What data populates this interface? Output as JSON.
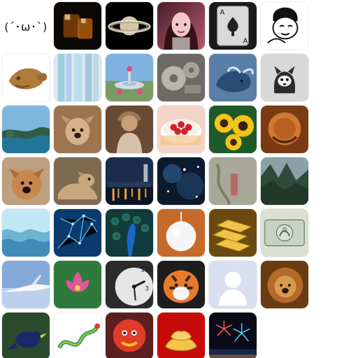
{
  "grid": {
    "rows": 7,
    "cols": 6,
    "items": [
      {
        "icon": "kaomoji-icon",
        "text": "(´･ω･`)",
        "colors": [
          "#ffffff",
          "#ffffff"
        ]
      },
      {
        "icon": "whiskey-glass-icon",
        "colors": [
          "#0c0805",
          "#7a3d0b"
        ]
      },
      {
        "icon": "saturn-icon",
        "colors": [
          "#000000",
          "#d6c6a5"
        ]
      },
      {
        "icon": "woman-portrait-icon",
        "colors": [
          "#4a1d2a",
          "#f1c8c8"
        ]
      },
      {
        "icon": "ace-of-spades-card-icon",
        "colors": [
          "#1b1b1b",
          "#d9d9d9"
        ]
      },
      {
        "icon": "meme-face-icon",
        "colors": [
          "#ffffff",
          "#111111"
        ]
      },
      {
        "icon": "taiyaki-fish-cookie-icon",
        "colors": [
          "#ffffff",
          "#b07a3a"
        ]
      },
      {
        "icon": "watercolor-abstract-icon",
        "colors": [
          "#dfe7f2",
          "#7dc4d6"
        ]
      },
      {
        "icon": "fountain-plaza-icon",
        "colors": [
          "#7fb2e0",
          "#e04b7d"
        ]
      },
      {
        "icon": "machine-gears-icon",
        "colors": [
          "#6e6a64",
          "#b9b5ad"
        ]
      },
      {
        "icon": "blue-bull-statue-icon",
        "colors": [
          "#5a7fa6",
          "#2a4d75"
        ]
      },
      {
        "icon": "cat-icon",
        "colors": [
          "#d8d8d8",
          "#2b2b2b"
        ]
      },
      {
        "icon": "lake-landscape-icon",
        "colors": [
          "#7fb6dd",
          "#2f5c44"
        ]
      },
      {
        "icon": "dog-icon",
        "colors": [
          "#9d7450",
          "#d6b08b"
        ]
      },
      {
        "icon": "costumed-figure-icon",
        "colors": [
          "#6b4a33",
          "#c9a07a"
        ]
      },
      {
        "icon": "strawberry-cake-icon",
        "colors": [
          "#f2d4c8",
          "#d1202b"
        ]
      },
      {
        "icon": "sunflowers-icon",
        "colors": [
          "#1f5a2a",
          "#f2c418"
        ]
      },
      {
        "icon": "carved-sculpture-icon",
        "colors": [
          "#7a3b13",
          "#d07a31"
        ]
      },
      {
        "icon": "dog-icon",
        "colors": [
          "#bca07f",
          "#c8874f"
        ]
      },
      {
        "icon": "dog-lying-icon",
        "colors": [
          "#7d6a4f",
          "#c9a77c"
        ]
      },
      {
        "icon": "night-harbor-icon",
        "colors": [
          "#1a2d4a",
          "#f0a43a"
        ]
      },
      {
        "icon": "galaxy-icon",
        "colors": [
          "#0b1a2c",
          "#3b6ea5"
        ]
      },
      {
        "icon": "cliff-carving-icon",
        "colors": [
          "#7b8a7a",
          "#b5b1a1"
        ]
      },
      {
        "icon": "mountain-peaks-icon",
        "colors": [
          "#8aa1a6",
          "#2f4a3a"
        ]
      },
      {
        "icon": "water-waves-icon",
        "colors": [
          "#bfe7f5",
          "#2c86b8"
        ]
      },
      {
        "icon": "blue-network-icon",
        "colors": [
          "#0b3b6e",
          "#61c6f2"
        ]
      },
      {
        "icon": "peacock-feathers-icon",
        "colors": [
          "#113b3d",
          "#2a7f4a"
        ]
      },
      {
        "icon": "white-fluff-ball-icon",
        "colors": [
          "#c66a2a",
          "#f5f5f5"
        ]
      },
      {
        "icon": "gold-bars-icon",
        "colors": [
          "#6b4a12",
          "#f0c44a"
        ]
      },
      {
        "icon": "dollar-bill-icon",
        "colors": [
          "#d9dfd1",
          "#4d6a52"
        ]
      },
      {
        "icon": "airplane-wing-sky-icon",
        "colors": [
          "#84a9d8",
          "#e7f0ff"
        ]
      },
      {
        "icon": "lotus-flower-icon",
        "colors": [
          "#2f7a3b",
          "#e0569a"
        ]
      },
      {
        "icon": "clock-face-icon",
        "colors": [
          "#2b2b2b",
          "#e6e6e6"
        ]
      },
      {
        "icon": "tiger-icon",
        "colors": [
          "#1d1d1d",
          "#e87a2b"
        ]
      },
      {
        "icon": "default-avatar-icon",
        "colors": [
          "#d8dfef",
          "#ffffff"
        ]
      },
      {
        "icon": "lion-icon",
        "colors": [
          "#6a3c12",
          "#d99a4d"
        ]
      },
      {
        "icon": "bird-icon",
        "colors": [
          "#2b4b2f",
          "#1a2a66"
        ]
      },
      {
        "icon": "dragon-illustration-icon",
        "colors": [
          "#ffffff",
          "#2aa46a"
        ]
      },
      {
        "icon": "lion-dance-icon",
        "colors": [
          "#5b1f1f",
          "#e23b2a"
        ]
      },
      {
        "icon": "gold-ingots-icon",
        "colors": [
          "#c60b0b",
          "#f2c44a"
        ]
      },
      {
        "icon": "fireworks-icon",
        "colors": [
          "#0b0b18",
          "#ff5b5b"
        ]
      },
      {
        "icon": "empty-slot-icon",
        "colors": [
          "#ffffff",
          "#ffffff"
        ]
      }
    ]
  }
}
